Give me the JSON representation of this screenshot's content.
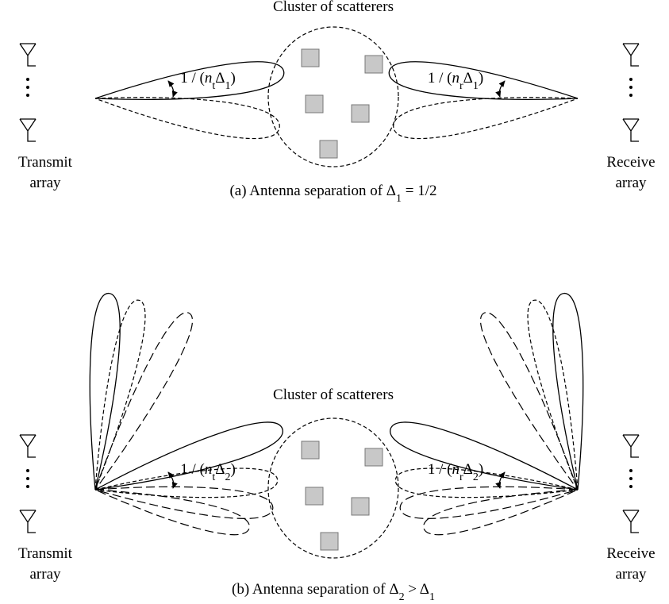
{
  "panel_a": {
    "cluster_label": "Cluster of scatterers",
    "transmit_label": [
      "Transmit",
      "array"
    ],
    "receive_label": [
      "Receive",
      "array"
    ],
    "tx_beam_label": [
      "1 / (",
      "n",
      "t",
      "Δ",
      "1",
      ")"
    ],
    "rx_beam_label": [
      "1 / (",
      "n",
      "r",
      "Δ",
      "1",
      ")"
    ],
    "caption": [
      "(a) Antenna separation of Δ",
      "1",
      " = 1/2"
    ]
  },
  "panel_b": {
    "cluster_label": "Cluster of scatterers",
    "transmit_label": [
      "Transmit",
      "array"
    ],
    "receive_label": [
      "Receive",
      "array"
    ],
    "tx_beam_label": [
      "1 / (",
      "n",
      "t",
      "Δ",
      "2",
      ")"
    ],
    "rx_beam_label": [
      "1 / (",
      "n",
      "r",
      "Δ",
      "2",
      ")"
    ],
    "caption": [
      "(b) Antenna separation of Δ",
      "2",
      " > Δ",
      "1"
    ]
  }
}
